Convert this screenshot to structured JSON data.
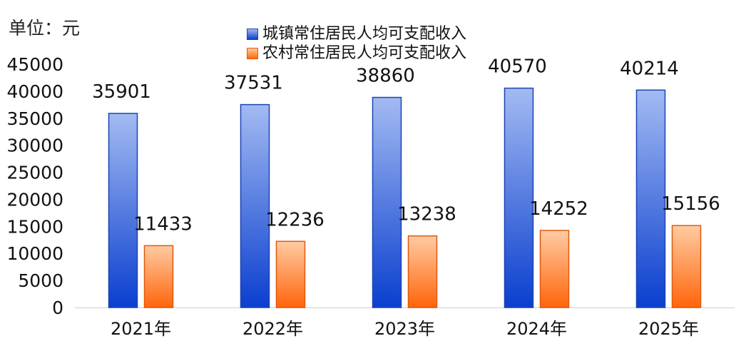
{
  "unit_label": "单位：元",
  "colors": {
    "urban_top": "#a3baf2",
    "urban_bottom": "#0a3fcf",
    "urban_stroke": "#1c45b5",
    "rural_top": "#ffcba3",
    "rural_bottom": "#ff650a",
    "rural_stroke": "#e2590f"
  },
  "chart_data": {
    "type": "bar",
    "categories": [
      "2021年",
      "2022年",
      "2023年",
      "2024年",
      "2025年"
    ],
    "series": [
      {
        "name": "城镇常住居民人均可支配收入",
        "values": [
          35901,
          37531,
          38860,
          40570,
          40214
        ]
      },
      {
        "name": "农村常住居民人均可支配收入",
        "values": [
          11433,
          12236,
          13238,
          14252,
          15156
        ]
      }
    ],
    "ylim": [
      0,
      45000
    ],
    "yticks": [
      "0",
      "5000",
      "10000",
      "15000",
      "20000",
      "25000",
      "30000",
      "35000",
      "40000",
      "45000"
    ],
    "data_labels": true,
    "grid": false,
    "legend_position": "top-center"
  }
}
